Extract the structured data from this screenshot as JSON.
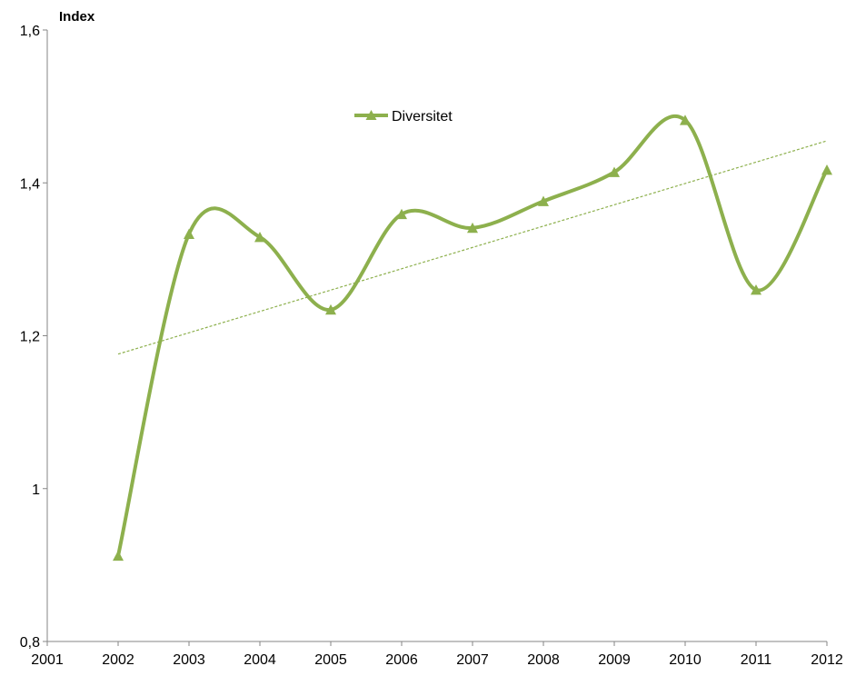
{
  "chart_data": {
    "type": "line",
    "ylabel": "Index",
    "xlim": [
      2001,
      2012
    ],
    "ylim": [
      0.8,
      1.6
    ],
    "x_ticks": [
      "2001",
      "2002",
      "2003",
      "2004",
      "2005",
      "2006",
      "2007",
      "2008",
      "2009",
      "2010",
      "2011",
      "2012"
    ],
    "y_ticks": [
      "0,8",
      "1",
      "1,2",
      "1,4",
      "1,6"
    ],
    "y_tick_values": [
      0.8,
      1.0,
      1.2,
      1.4,
      1.6
    ],
    "series": [
      {
        "name": "Diversitet",
        "color": "#8db04d",
        "marker": "triangle",
        "smooth": true,
        "x": [
          2002,
          2003,
          2004,
          2005,
          2006,
          2007,
          2008,
          2009,
          2010,
          2011,
          2012
        ],
        "values": [
          0.912,
          1.333,
          1.329,
          1.234,
          1.359,
          1.341,
          1.376,
          1.414,
          1.482,
          1.26,
          1.417
        ]
      }
    ],
    "trendline": {
      "type": "linear",
      "style": "dashed",
      "color": "#8db04d",
      "x": [
        2002,
        2012
      ],
      "values": [
        1.176,
        1.455
      ]
    },
    "legend": "top-center",
    "grid": false
  }
}
